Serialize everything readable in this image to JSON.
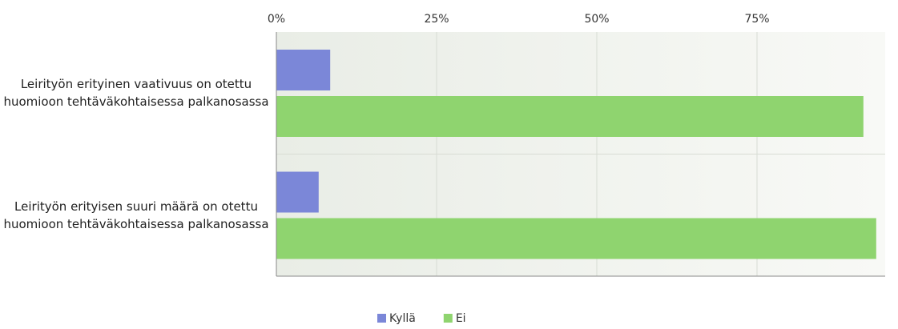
{
  "chart_data": {
    "type": "hbar",
    "categories": [
      "Leirityön erityinen vaativuus on otettu huomioon tehtäväkohtaisessa palkanosassa",
      "Leirityön erityisen suuri määrä on otettu huomioon tehtäväkohtaisessa palkanosassa"
    ],
    "series": [
      {
        "name": "Kyllä",
        "color": "#7b87d8",
        "values": [
          8.4,
          6.6
        ]
      },
      {
        "name": "Ei",
        "color": "#8fd46f",
        "values": [
          91.6,
          93.6
        ]
      }
    ],
    "xlim": [
      0,
      95
    ],
    "xticks": [
      {
        "value": 0,
        "label": "0%"
      },
      {
        "value": 25,
        "label": "25%"
      },
      {
        "value": 50,
        "label": "50%"
      },
      {
        "value": 75,
        "label": "75%"
      }
    ],
    "grid": true,
    "legend": "bottom"
  }
}
